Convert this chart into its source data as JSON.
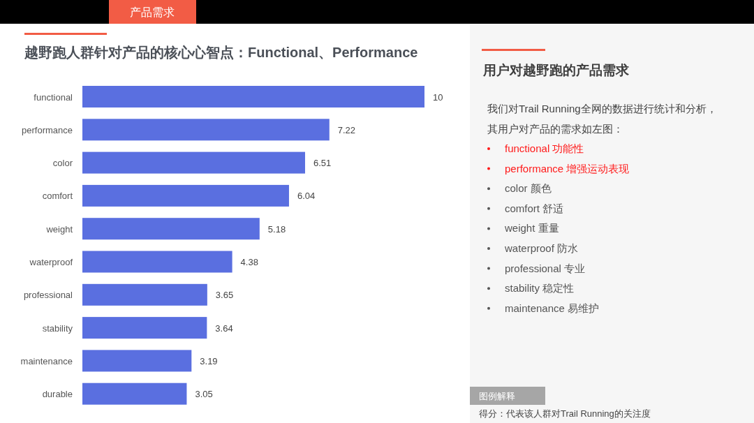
{
  "chart_data": {
    "type": "bar",
    "orientation": "horizontal",
    "title": "越野跑人群针对产品的核心心智点：Functional、Performance",
    "categories": [
      "functional",
      "performance",
      "color",
      "comfort",
      "weight",
      "waterproof",
      "professional",
      "stability",
      "maintenance",
      "durable"
    ],
    "values": [
      10,
      7.22,
      6.51,
      6.04,
      5.18,
      4.38,
      3.65,
      3.64,
      3.19,
      3.05
    ],
    "color": "#5a6fe0",
    "data_labels": true,
    "annotations": [
      "产品需求",
      "用户对越野跑的产品需求",
      "我们对Trail Running全网的数据进行统计和分析，",
      "其用户对产品的需求如左图：",
      "functional 功能性",
      "performance 增强运动表现",
      "color 颜色",
      "comfort 舒适",
      "weight  重量",
      "waterproof 防水",
      "professional 专业",
      "stability 稳定性",
      "maintenance 易维护",
      "图例解释",
      "得分：代表该人群对Trail Running的关注度"
    ]
  }
}
